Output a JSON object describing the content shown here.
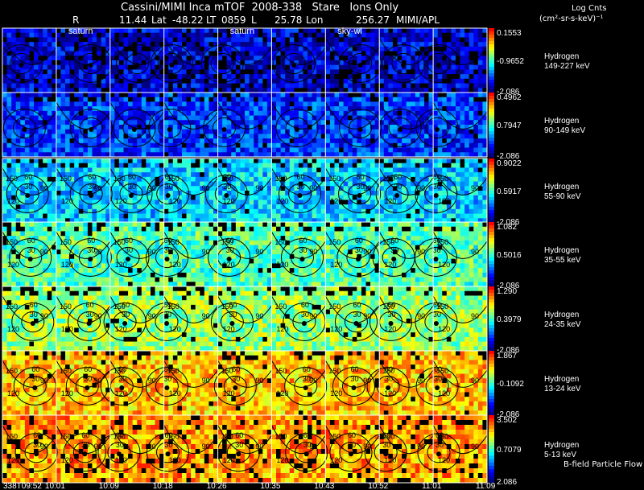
{
  "header": {
    "title": "Cassini/MIMI Inca mTOF  2008-338   Stare   Ions Only",
    "r_label": "R",
    "r_value": "11.44",
    "lat_label": "Lat",
    "lat_value": "-48.22",
    "lt_label": "LT",
    "lt_value": "0859",
    "l_label": "L",
    "l_value": "25.78",
    "lon_label": "Lon",
    "lon_value": "256.27",
    "institution": "MIMI/APL",
    "scale_label": "Log Cnts",
    "unit_label": "(cm²-sr-s-keV)⁻¹"
  },
  "footer": {
    "flow_label": "B-field Particle Flow"
  },
  "chart_data": {
    "type": "heatmap",
    "title": "Cassini/MIMI Inca mTOF  2008-338   Stare   Ions Only",
    "species": "Hydrogen",
    "time_labels": [
      "338T09:52",
      "10:01",
      "10:09",
      "10:18",
      "10:26",
      "10:35",
      "10:43",
      "10:52",
      "11:01",
      "11:09"
    ],
    "frame_labels": [
      {
        "frame": 1,
        "text": "saturn"
      },
      {
        "frame": 4,
        "text": "saturn"
      },
      {
        "frame": 6,
        "text": "sky-wl"
      }
    ],
    "contour_pitch_angles_deg": [
      30,
      60,
      90,
      120,
      150
    ],
    "panels": [
      {
        "species": "Hydrogen",
        "energy": "149-227 keV",
        "scale_max": "0.1553",
        "scale_mid": "-0.9652",
        "scale_min": "-2.086",
        "level": 0.1
      },
      {
        "species": "Hydrogen",
        "energy": "90-149 keV",
        "scale_max": "0.4962",
        "scale_mid": "0.7947",
        "scale_min": "-2.086",
        "level": 0.2
      },
      {
        "species": "Hydrogen",
        "energy": "55-90 keV",
        "scale_max": "0.9022",
        "scale_mid": "0.5917",
        "scale_min": "-2.086",
        "level": 0.38
      },
      {
        "species": "Hydrogen",
        "energy": "35-55 keV",
        "scale_max": "1.082",
        "scale_mid": "0.5016",
        "scale_min": "-2.086",
        "level": 0.52
      },
      {
        "species": "Hydrogen",
        "energy": "24-35 keV",
        "scale_max": "1.290",
        "scale_mid": "0.3979",
        "scale_min": "-2.086",
        "level": 0.6
      },
      {
        "species": "Hydrogen",
        "energy": "13-24 keV",
        "scale_max": "1.867",
        "scale_mid": "-0.1092",
        "scale_min": "-2.086",
        "level": 0.78
      },
      {
        "species": "Hydrogen",
        "energy": "5-13 keV",
        "scale_max": "3.502",
        "scale_mid": "0.7079",
        "scale_min": "2.086",
        "level": 0.82
      }
    ],
    "colormap": [
      "#000080",
      "#0000ff",
      "#0080ff",
      "#00ffff",
      "#80ff80",
      "#ffff00",
      "#ff8000",
      "#ff0000"
    ]
  }
}
